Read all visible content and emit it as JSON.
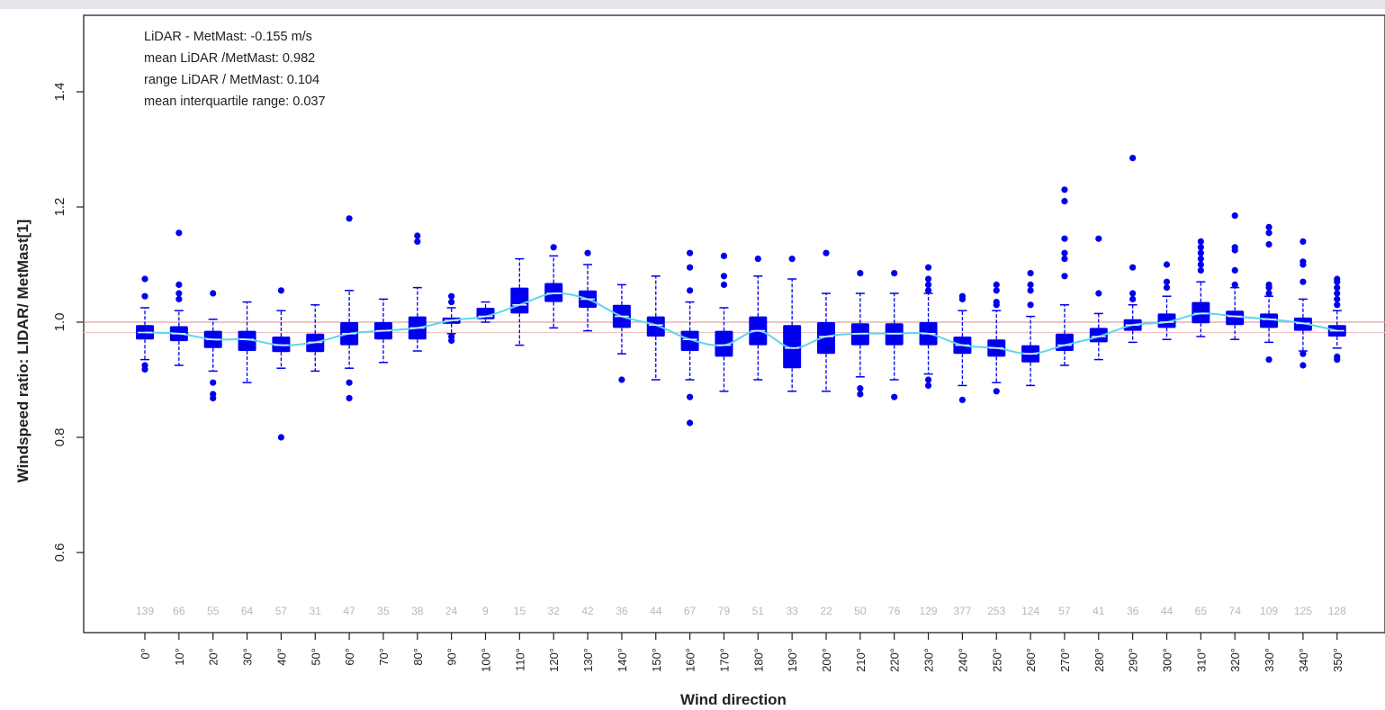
{
  "chart_data": {
    "type": "box",
    "xlabel": "Wind direction",
    "ylabel": "Windspeed ratio: LIDAR/ MetMast[1]",
    "ylim": [
      0.48,
      1.54
    ],
    "yticks": [
      0.6,
      0.8,
      1.0,
      1.2,
      1.4
    ],
    "ytick_labels": [
      "0.6",
      "0.8",
      "1.0",
      "1.2",
      "1.4"
    ],
    "categories": [
      "0°",
      "10°",
      "20°",
      "30°",
      "40°",
      "50°",
      "60°",
      "70°",
      "80°",
      "90°",
      "100°",
      "110°",
      "120°",
      "130°",
      "140°",
      "150°",
      "160°",
      "170°",
      "180°",
      "190°",
      "200°",
      "210°",
      "220°",
      "230°",
      "240°",
      "250°",
      "260°",
      "270°",
      "280°",
      "290°",
      "300°",
      "310°",
      "320°",
      "330°",
      "340°",
      "350°"
    ],
    "counts": [
      "139",
      "66",
      "55",
      "64",
      "57",
      "31",
      "47",
      "35",
      "38",
      "24",
      "9",
      "15",
      "32",
      "42",
      "36",
      "44",
      "67",
      "79",
      "51",
      "33",
      "22",
      "50",
      "76",
      "129",
      "377",
      "253",
      "124",
      "57",
      "41",
      "36",
      "44",
      "65",
      "74",
      "109",
      "125",
      "128"
    ],
    "reference_lines": [
      1.0,
      0.982
    ],
    "box_color": "#0000ee",
    "trend_color": "#5ad7ee",
    "ref_line_colors": [
      "#d9a3a3",
      "#f0c4c4"
    ],
    "annotations": [
      "LiDAR - MetMast: -0.155 m/s",
      "mean LiDAR /MetMast: 0.982",
      "range LiDAR / MetMast: 0.104",
      "mean interquartile range: 0.037"
    ],
    "boxes": [
      {
        "direction": "0°",
        "whisker_low": 0.935,
        "q1": 0.97,
        "median": 0.982,
        "q3": 0.995,
        "whisker_high": 1.025,
        "outliers": [
          1.075,
          1.045,
          0.925,
          0.918
        ]
      },
      {
        "direction": "10°",
        "whisker_low": 0.925,
        "q1": 0.967,
        "median": 0.98,
        "q3": 0.993,
        "whisker_high": 1.02,
        "outliers": [
          1.155,
          1.065,
          1.05,
          1.04
        ]
      },
      {
        "direction": "20°",
        "whisker_low": 0.915,
        "q1": 0.955,
        "median": 0.97,
        "q3": 0.985,
        "whisker_high": 1.005,
        "outliers": [
          1.05,
          0.895,
          0.875,
          0.868
        ]
      },
      {
        "direction": "30°",
        "whisker_low": 0.895,
        "q1": 0.95,
        "median": 0.97,
        "q3": 0.985,
        "whisker_high": 1.035,
        "outliers": []
      },
      {
        "direction": "40°",
        "whisker_low": 0.92,
        "q1": 0.948,
        "median": 0.96,
        "q3": 0.975,
        "whisker_high": 1.02,
        "outliers": [
          1.055,
          0.8
        ]
      },
      {
        "direction": "50°",
        "whisker_low": 0.915,
        "q1": 0.948,
        "median": 0.965,
        "q3": 0.98,
        "whisker_high": 1.03,
        "outliers": []
      },
      {
        "direction": "60°",
        "whisker_low": 0.92,
        "q1": 0.96,
        "median": 0.98,
        "q3": 1.0,
        "whisker_high": 1.055,
        "outliers": [
          1.18,
          0.895,
          0.868
        ]
      },
      {
        "direction": "70°",
        "whisker_low": 0.93,
        "q1": 0.97,
        "median": 0.985,
        "q3": 1.0,
        "whisker_high": 1.04,
        "outliers": []
      },
      {
        "direction": "80°",
        "whisker_low": 0.95,
        "q1": 0.97,
        "median": 0.99,
        "q3": 1.01,
        "whisker_high": 1.06,
        "outliers": [
          1.15,
          1.14
        ]
      },
      {
        "direction": "90°",
        "whisker_low": 0.98,
        "q1": 0.997,
        "median": 1.003,
        "q3": 1.008,
        "whisker_high": 1.025,
        "outliers": [
          1.045,
          1.035,
          0.975,
          0.968
        ]
      },
      {
        "direction": "100°",
        "whisker_low": 1.0,
        "q1": 1.005,
        "median": 1.01,
        "q3": 1.025,
        "whisker_high": 1.035,
        "outliers": []
      },
      {
        "direction": "110°",
        "whisker_low": 0.96,
        "q1": 1.015,
        "median": 1.03,
        "q3": 1.06,
        "whisker_high": 1.11,
        "outliers": []
      },
      {
        "direction": "120°",
        "whisker_low": 0.99,
        "q1": 1.035,
        "median": 1.05,
        "q3": 1.068,
        "whisker_high": 1.115,
        "outliers": [
          1.13
        ]
      },
      {
        "direction": "130°",
        "whisker_low": 0.985,
        "q1": 1.025,
        "median": 1.04,
        "q3": 1.055,
        "whisker_high": 1.1,
        "outliers": [
          1.12
        ]
      },
      {
        "direction": "140°",
        "whisker_low": 0.945,
        "q1": 0.99,
        "median": 1.01,
        "q3": 1.03,
        "whisker_high": 1.065,
        "outliers": [
          0.9
        ]
      },
      {
        "direction": "150°",
        "whisker_low": 0.9,
        "q1": 0.975,
        "median": 0.995,
        "q3": 1.01,
        "whisker_high": 1.08,
        "outliers": []
      },
      {
        "direction": "160°",
        "whisker_low": 0.9,
        "q1": 0.95,
        "median": 0.97,
        "q3": 0.985,
        "whisker_high": 1.035,
        "outliers": [
          1.12,
          1.095,
          1.055,
          0.87,
          0.825
        ]
      },
      {
        "direction": "170°",
        "whisker_low": 0.88,
        "q1": 0.94,
        "median": 0.96,
        "q3": 0.985,
        "whisker_high": 1.025,
        "outliers": [
          1.115,
          1.08,
          1.065
        ]
      },
      {
        "direction": "180°",
        "whisker_low": 0.9,
        "q1": 0.96,
        "median": 0.985,
        "q3": 1.01,
        "whisker_high": 1.08,
        "outliers": [
          1.11
        ]
      },
      {
        "direction": "190°",
        "whisker_low": 0.88,
        "q1": 0.92,
        "median": 0.955,
        "q3": 0.995,
        "whisker_high": 1.075,
        "outliers": [
          1.11
        ]
      },
      {
        "direction": "200°",
        "whisker_low": 0.88,
        "q1": 0.945,
        "median": 0.975,
        "q3": 1.0,
        "whisker_high": 1.05,
        "outliers": [
          1.12
        ]
      },
      {
        "direction": "210°",
        "whisker_low": 0.905,
        "q1": 0.96,
        "median": 0.98,
        "q3": 0.998,
        "whisker_high": 1.05,
        "outliers": [
          1.085,
          0.885,
          0.875
        ]
      },
      {
        "direction": "220°",
        "whisker_low": 0.9,
        "q1": 0.96,
        "median": 0.98,
        "q3": 0.998,
        "whisker_high": 1.05,
        "outliers": [
          1.085,
          0.87
        ]
      },
      {
        "direction": "230°",
        "whisker_low": 0.91,
        "q1": 0.96,
        "median": 0.98,
        "q3": 1.0,
        "whisker_high": 1.05,
        "outliers": [
          1.095,
          1.075,
          1.065,
          1.055,
          0.9,
          0.89
        ]
      },
      {
        "direction": "240°",
        "whisker_low": 0.89,
        "q1": 0.945,
        "median": 0.96,
        "q3": 0.975,
        "whisker_high": 1.02,
        "outliers": [
          1.045,
          1.04,
          0.865
        ]
      },
      {
        "direction": "250°",
        "whisker_low": 0.895,
        "q1": 0.94,
        "median": 0.955,
        "q3": 0.97,
        "whisker_high": 1.02,
        "outliers": [
          1.065,
          1.055,
          1.035,
          1.03,
          0.88
        ]
      },
      {
        "direction": "260°",
        "whisker_low": 0.89,
        "q1": 0.93,
        "median": 0.945,
        "q3": 0.96,
        "whisker_high": 1.01,
        "outliers": [
          1.085,
          1.065,
          1.055,
          1.03
        ]
      },
      {
        "direction": "270°",
        "whisker_low": 0.925,
        "q1": 0.95,
        "median": 0.96,
        "q3": 0.98,
        "whisker_high": 1.03,
        "outliers": [
          1.23,
          1.21,
          1.145,
          1.12,
          1.11,
          1.08
        ]
      },
      {
        "direction": "280°",
        "whisker_low": 0.935,
        "q1": 0.965,
        "median": 0.975,
        "q3": 0.99,
        "whisker_high": 1.015,
        "outliers": [
          1.145,
          1.05
        ]
      },
      {
        "direction": "290°",
        "whisker_low": 0.965,
        "q1": 0.985,
        "median": 0.995,
        "q3": 1.005,
        "whisker_high": 1.03,
        "outliers": [
          1.285,
          1.095,
          1.05,
          1.04
        ]
      },
      {
        "direction": "300°",
        "whisker_low": 0.97,
        "q1": 0.99,
        "median": 1.0,
        "q3": 1.015,
        "whisker_high": 1.045,
        "outliers": [
          1.1,
          1.07,
          1.06
        ]
      },
      {
        "direction": "310°",
        "whisker_low": 0.975,
        "q1": 0.998,
        "median": 1.015,
        "q3": 1.035,
        "whisker_high": 1.07,
        "outliers": [
          1.14,
          1.13,
          1.12,
          1.11,
          1.1,
          1.09
        ]
      },
      {
        "direction": "320°",
        "whisker_low": 0.97,
        "q1": 0.995,
        "median": 1.01,
        "q3": 1.02,
        "whisker_high": 1.06,
        "outliers": [
          1.185,
          1.13,
          1.125,
          1.09,
          1.065
        ]
      },
      {
        "direction": "330°",
        "whisker_low": 0.965,
        "q1": 0.99,
        "median": 1.005,
        "q3": 1.015,
        "whisker_high": 1.045,
        "outliers": [
          1.165,
          1.155,
          1.135,
          1.065,
          1.06,
          1.05,
          0.935
        ]
      },
      {
        "direction": "340°",
        "whisker_low": 0.95,
        "q1": 0.985,
        "median": 0.998,
        "q3": 1.008,
        "whisker_high": 1.04,
        "outliers": [
          1.14,
          1.105,
          1.1,
          1.07,
          0.945,
          0.925
        ]
      },
      {
        "direction": "350°",
        "whisker_low": 0.955,
        "q1": 0.975,
        "median": 0.985,
        "q3": 0.995,
        "whisker_high": 1.02,
        "outliers": [
          1.075,
          1.07,
          1.06,
          1.05,
          1.04,
          1.03,
          0.94,
          0.935
        ]
      }
    ]
  }
}
